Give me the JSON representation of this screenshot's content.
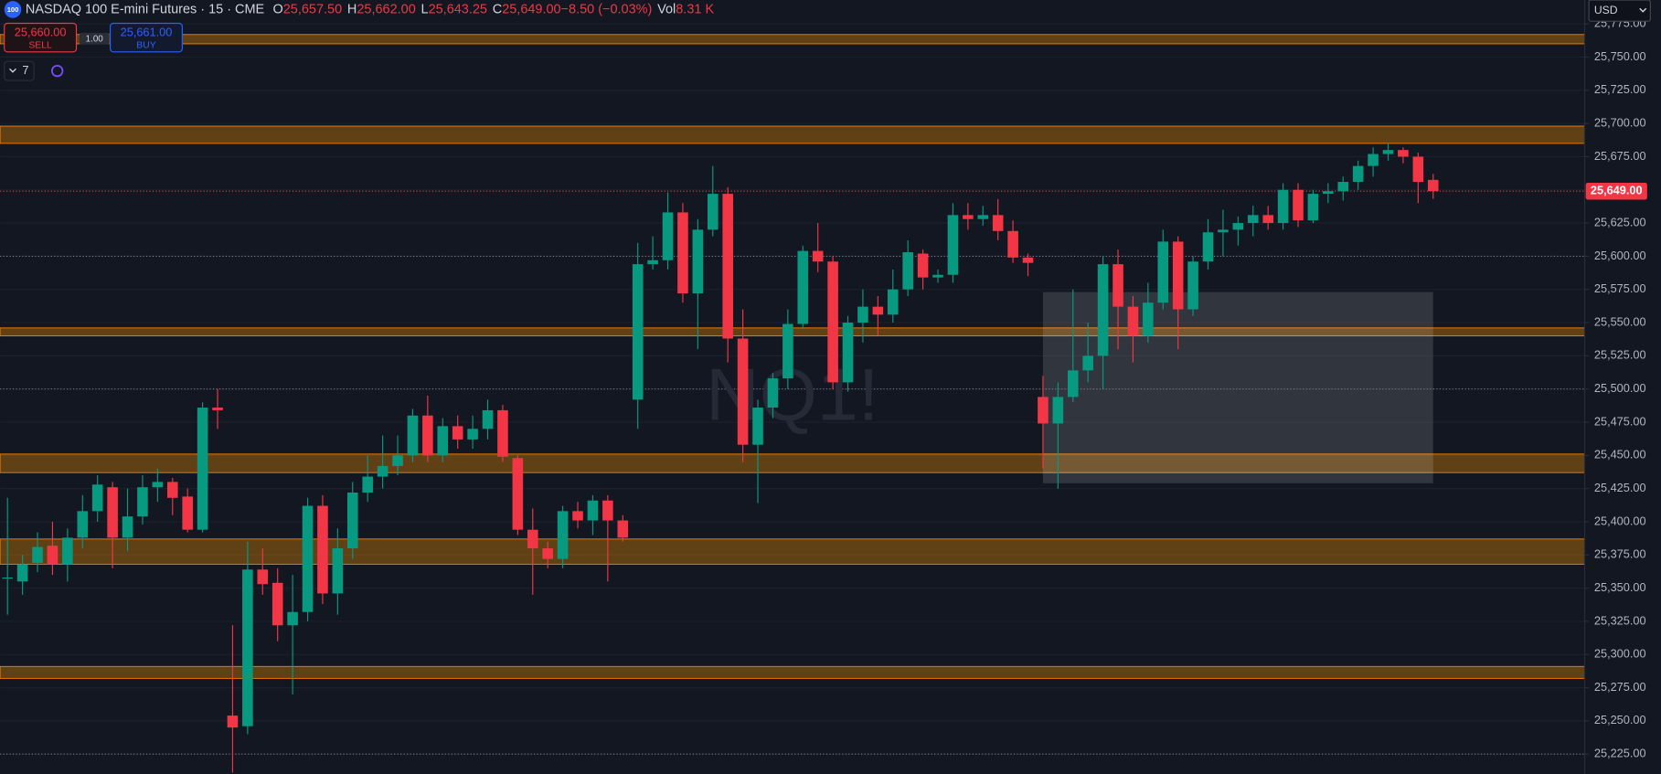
{
  "header": {
    "badge": "100",
    "symbol": "NASDAQ 100 E-mini Futures · 15 · CME",
    "legend": [
      {
        "key": "O",
        "text": "25,657.50"
      },
      {
        "key": "H",
        "text": "25,662.00"
      },
      {
        "key": "L",
        "text": "25,643.25"
      },
      {
        "key": "C",
        "text": "25,649.00"
      },
      {
        "key": "",
        "text": "−8.50 (−0.03%)"
      },
      {
        "key": "Vol",
        "text": "8.31 K"
      }
    ],
    "sell": {
      "price": "25,660.00",
      "label": "SELL"
    },
    "buy": {
      "price": "25,661.00",
      "label": "BUY"
    },
    "spread": "1.00",
    "indicators": "7",
    "currency": "USD"
  },
  "chart_data": {
    "type": "candlestick",
    "watermark": "NQ1!",
    "up_color": "#089981",
    "down_color": "#f23645",
    "open": [
      25358,
      25355,
      25369,
      25382,
      25368,
      25388,
      25408,
      25426,
      25388,
      25404,
      25426,
      25430,
      25419,
      25394,
      25486,
      25254,
      25246,
      25364,
      25354,
      25322,
      25332,
      25412,
      25346,
      25380,
      25422,
      25434,
      25442,
      25450,
      25480,
      25450,
      25472,
      25462,
      25470,
      25484,
      25448,
      25394,
      25380,
      25372,
      25408,
      25401,
      25416,
      25401,
      25492,
      25594,
      25597,
      25633,
      25572,
      25620,
      25647,
      25538,
      25458,
      25486,
      25508,
      25549,
      25604,
      25596,
      25505,
      25550,
      25562,
      25556,
      25575,
      25602,
      25584,
      25586,
      25631,
      25628,
      25631,
      25619,
      25599,
      25494,
      25474,
      25494,
      25514,
      25525,
      25594,
      25562,
      25540,
      25565,
      25611,
      25560,
      25596,
      25618,
      25620,
      25625,
      25631,
      25625,
      25650,
      25627,
      25647,
      25649,
      25656,
      25668,
      25677,
      25680,
      25675,
      25657.5
    ],
    "high": [
      25418,
      25375,
      25392,
      25400,
      25395,
      25420,
      25435,
      25430,
      25425,
      25435,
      25440,
      25433,
      25425,
      25490,
      25500,
      25322,
      25385,
      25380,
      25365,
      25360,
      25418,
      25420,
      25395,
      25430,
      25450,
      25465,
      25465,
      25485,
      25495,
      25478,
      25480,
      25480,
      25492,
      25488,
      25450,
      25410,
      25385,
      25412,
      25415,
      25420,
      25420,
      25405,
      25610,
      25615,
      25648,
      25640,
      25628,
      25668,
      25652,
      25560,
      25492,
      25512,
      25560,
      25608,
      25625,
      25600,
      25555,
      25575,
      25570,
      25590,
      25612,
      25605,
      25590,
      25640,
      25640,
      25638,
      25643,
      25627,
      25602,
      25510,
      25505,
      25575,
      25550,
      25600,
      25605,
      25570,
      25580,
      25620,
      25615,
      25600,
      25628,
      25635,
      25630,
      25638,
      25638,
      25655,
      25655,
      25650,
      25655,
      25660,
      25672,
      25682,
      25685,
      25682,
      25678,
      25662
    ],
    "low": [
      25330,
      25345,
      25362,
      25360,
      25355,
      25380,
      25400,
      25365,
      25378,
      25398,
      25415,
      25405,
      25392,
      25392,
      25470,
      25211,
      25240,
      25345,
      25310,
      25270,
      25325,
      25338,
      25330,
      25372,
      25415,
      25425,
      25435,
      25445,
      25445,
      25445,
      25455,
      25455,
      25462,
      25445,
      25390,
      25345,
      25365,
      25365,
      25395,
      25390,
      25355,
      25385,
      25470,
      25590,
      25590,
      25565,
      25530,
      25615,
      25520,
      25445,
      25414,
      25478,
      25500,
      25545,
      25588,
      25500,
      25498,
      25535,
      25540,
      25550,
      25570,
      25575,
      25580,
      25580,
      25620,
      25623,
      25612,
      25595,
      25585,
      25440,
      25425,
      25490,
      25505,
      25500,
      25530,
      25520,
      25535,
      25560,
      25530,
      25555,
      25590,
      25600,
      25608,
      25615,
      25620,
      25620,
      25622,
      25625,
      25640,
      25642,
      25650,
      25660,
      25672,
      25670,
      25640,
      25643.25
    ],
    "close": [
      25358,
      25368,
      25381,
      25368,
      25388,
      25408,
      25428,
      25388,
      25404,
      25426,
      25430,
      25418,
      25394,
      25486,
      25484,
      25245,
      25364,
      25353,
      25322,
      25332,
      25412,
      25346,
      25380,
      25422,
      25434,
      25442,
      25450,
      25480,
      25450,
      25472,
      25462,
      25470,
      25484,
      25449,
      25394,
      25380,
      25372,
      25408,
      25401,
      25416,
      25401,
      25388,
      25594,
      25597,
      25633,
      25572,
      25620,
      25647,
      25538,
      25458,
      25486,
      25508,
      25549,
      25604,
      25596,
      25505,
      25550,
      25562,
      25556,
      25575,
      25603,
      25584,
      25586,
      25631,
      25628,
      25631,
      25619,
      25599,
      25595,
      25474,
      25494,
      25514,
      25525,
      25594,
      25562,
      25540,
      25565,
      25611,
      25560,
      25596,
      25618,
      25620,
      25625,
      25631,
      25625,
      25650,
      25627,
      25647,
      25649,
      25656,
      25668,
      25677,
      25680,
      25675,
      25656,
      25649
    ],
    "ylim": [
      25210,
      25793
    ],
    "yticks": [
      {
        "value": 25225,
        "label": "25,225.00"
      },
      {
        "value": 25250,
        "label": "25,250.00"
      },
      {
        "value": 25275,
        "label": "25,275.00"
      },
      {
        "value": 25300,
        "label": "25,300.00"
      },
      {
        "value": 25325,
        "label": "25,325.00"
      },
      {
        "value": 25350,
        "label": "25,350.00"
      },
      {
        "value": 25375,
        "label": "25,375.00"
      },
      {
        "value": 25400,
        "label": "25,400.00"
      },
      {
        "value": 25425,
        "label": "25,425.00"
      },
      {
        "value": 25450,
        "label": "25,450.00"
      },
      {
        "value": 25475,
        "label": "25,475.00"
      },
      {
        "value": 25500,
        "label": "25,500.00"
      },
      {
        "value": 25525,
        "label": "25,525.00"
      },
      {
        "value": 25550,
        "label": "25,550.00"
      },
      {
        "value": 25575,
        "label": "25,575.00"
      },
      {
        "value": 25600,
        "label": "25,600.00"
      },
      {
        "value": 25625,
        "label": "25,625.00"
      },
      {
        "value": 25650,
        "label": "25,650.00"
      },
      {
        "value": 25675,
        "label": "25,675.00"
      },
      {
        "value": 25700,
        "label": "25,700.00"
      },
      {
        "value": 25725,
        "label": "25,725.00"
      },
      {
        "value": 25750,
        "label": "25,750.00"
      },
      {
        "value": 25775,
        "label": "25,775.00"
      }
    ],
    "grid": true,
    "zones": [
      {
        "from": 25760,
        "to": 25767
      },
      {
        "from": 25685,
        "to": 25698
      },
      {
        "from": 25540,
        "to": 25546
      },
      {
        "from": 25437,
        "to": 25451
      },
      {
        "from": 25368,
        "to": 25387
      },
      {
        "from": 25282,
        "to": 25291
      }
    ],
    "box": {
      "from": 25429,
      "to": 25573
    },
    "price_lines": [
      {
        "value": 25649,
        "color": "#f23645"
      },
      {
        "value": 25600,
        "color": "#787b86"
      },
      {
        "value": 25500,
        "color": "#787b86"
      },
      {
        "value": 25225,
        "color": "#787b86"
      }
    ],
    "last_price": {
      "value": 25649,
      "label": "25,649.00"
    }
  }
}
